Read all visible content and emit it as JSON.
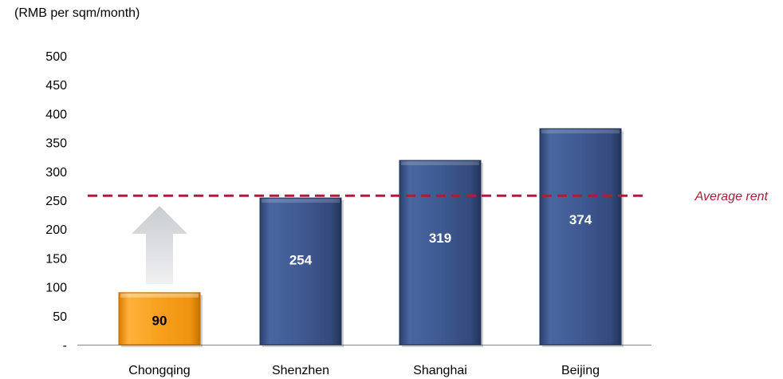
{
  "chart_data": {
    "type": "bar",
    "ylabel": "(RMB per sqm/month)",
    "categories": [
      "Chongqing",
      "Shenzhen",
      "Shanghai",
      "Beijing"
    ],
    "values": [
      90,
      254,
      319,
      374
    ],
    "ylim": [
      0,
      500
    ],
    "yticks": [
      "-",
      "50",
      "100",
      "150",
      "200",
      "250",
      "300",
      "350",
      "400",
      "450",
      "500"
    ],
    "reference_line": {
      "label": "Average rent",
      "value": 258
    },
    "grid": false,
    "colors": {
      "highlight_bar": "#f39c12",
      "bars": "#3b5387",
      "highlight_label": "#000000",
      "bar_label": "#ffffff",
      "average_line": "#a3213a",
      "arrow": "#d9dcdf"
    }
  }
}
